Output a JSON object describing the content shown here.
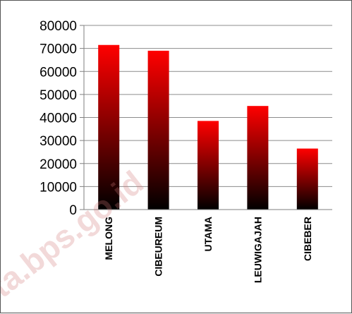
{
  "chart_data": {
    "type": "bar",
    "categories": [
      "MELONG",
      "CIBEUREUM",
      "UTAMA",
      "LEUWIGAJAH",
      "CIBEBER"
    ],
    "values": [
      71500,
      69000,
      38500,
      45000,
      26500
    ],
    "title": "",
    "xlabel": "",
    "ylabel": "",
    "ylim": [
      0,
      80000
    ],
    "yticks": [
      "0",
      "10000",
      "20000",
      "30000",
      "40000",
      "50000",
      "60000",
      "70000",
      "80000"
    ],
    "grid": true,
    "legend": "none",
    "colors": {
      "bar_top": "#ff0000",
      "bar_bottom": "#000000",
      "grid": "#8c8c8c"
    }
  },
  "watermark": {
    "text": "ota.bps.go.id"
  }
}
